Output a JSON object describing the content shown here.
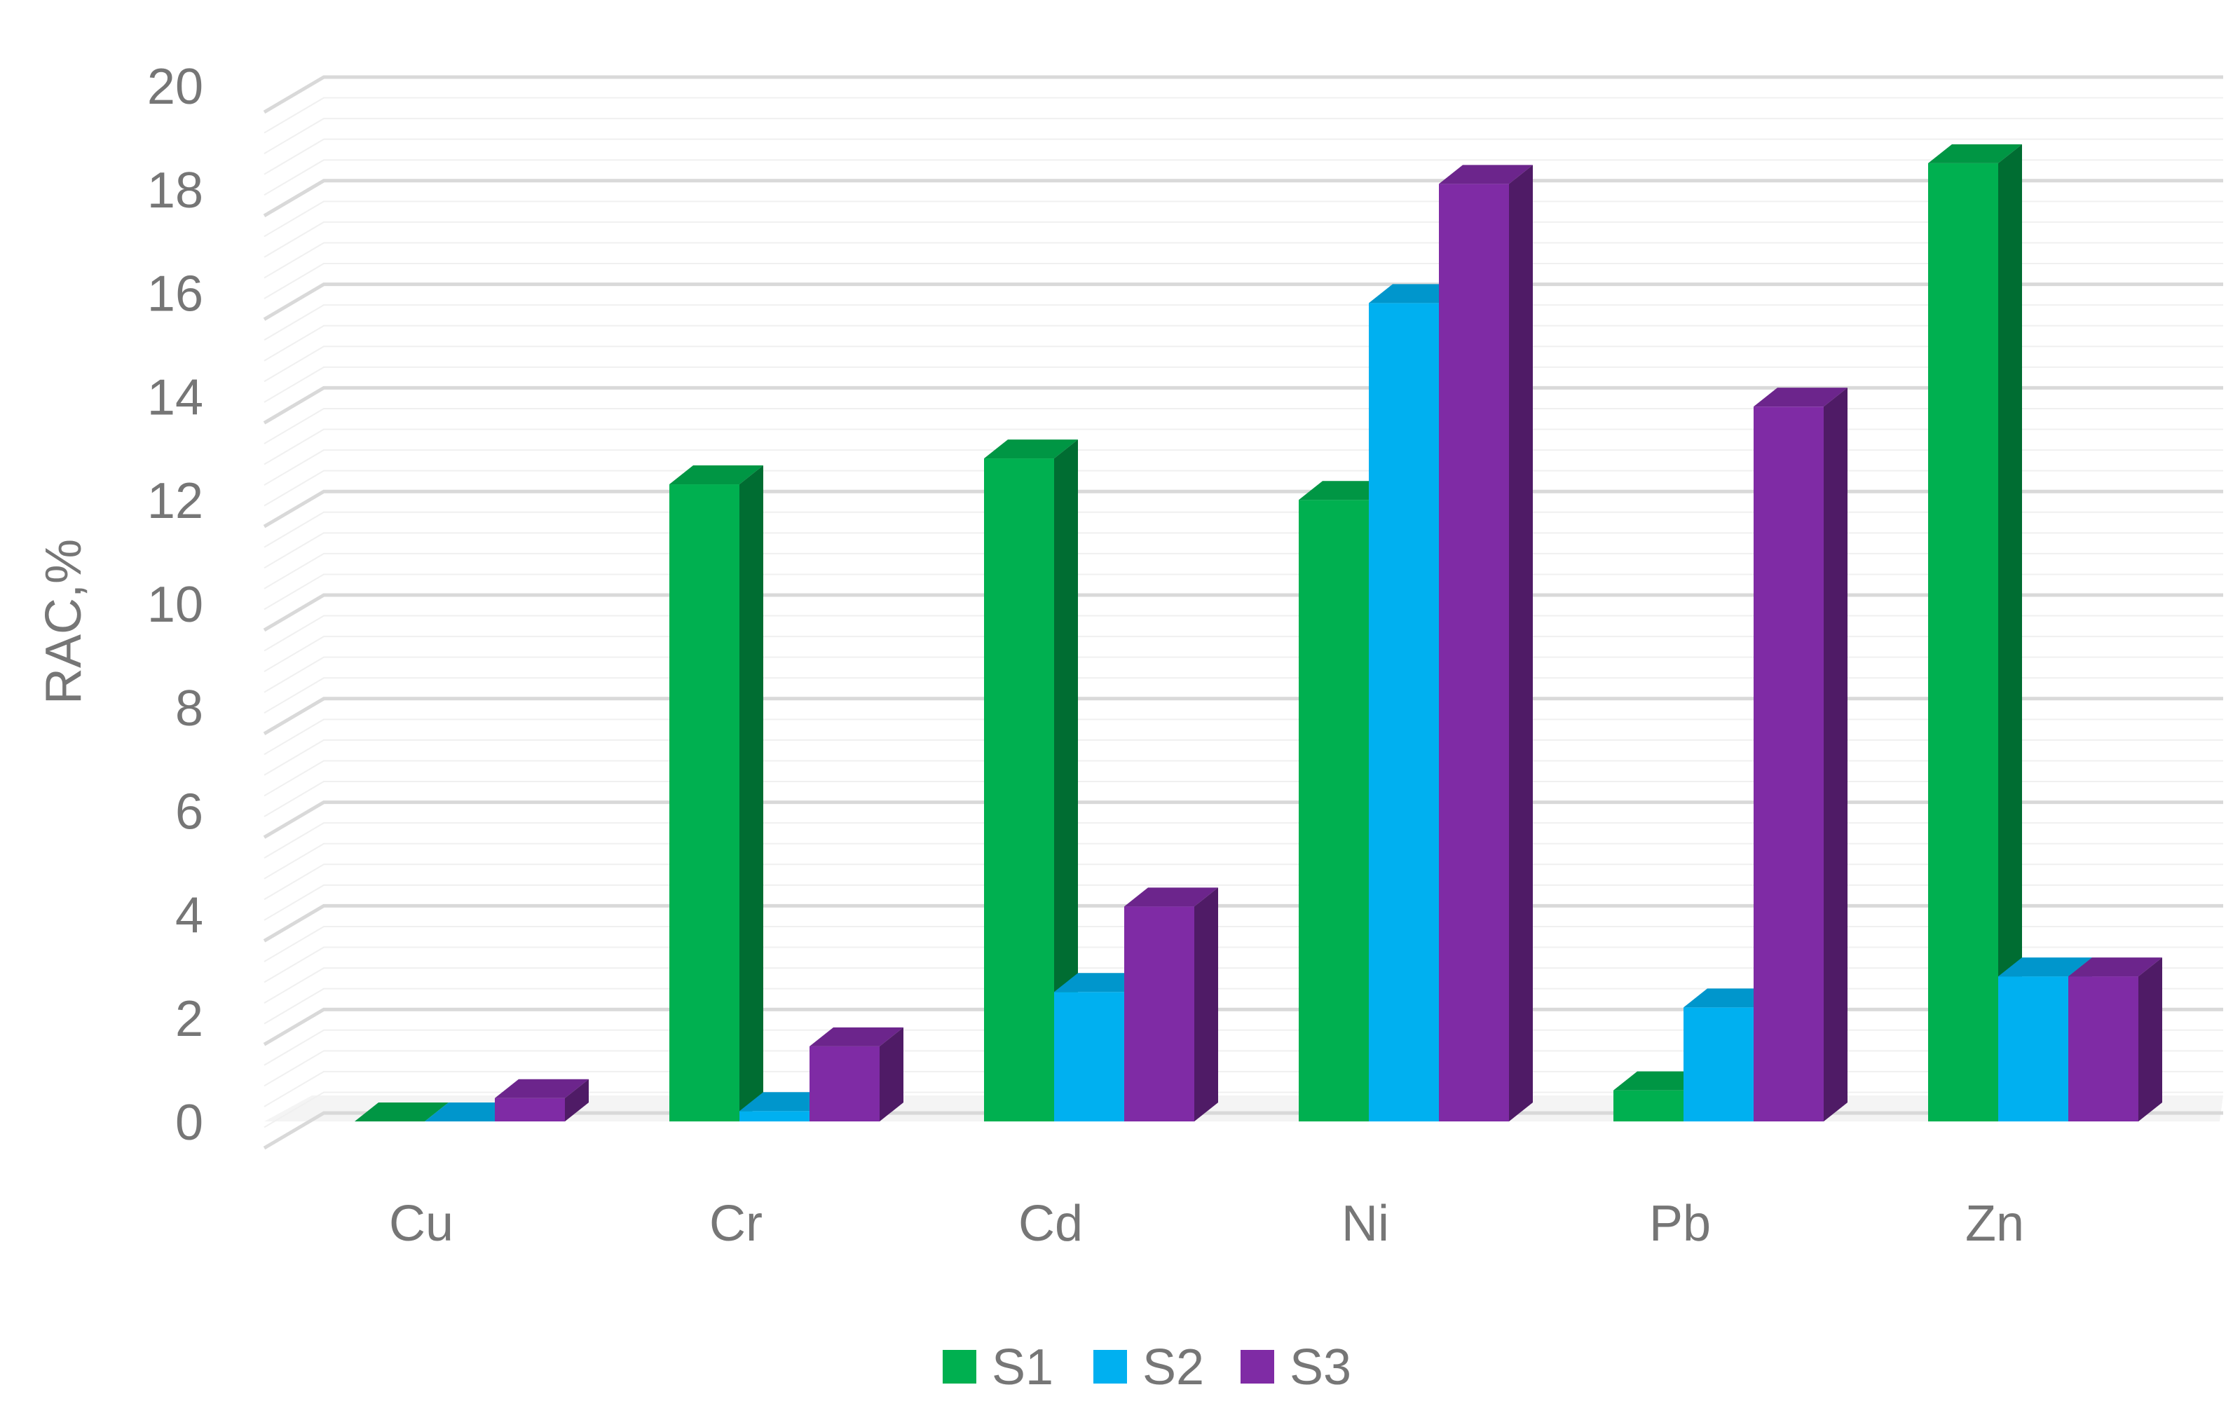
{
  "chart_data": {
    "type": "bar",
    "title": "",
    "xlabel": "",
    "ylabel": "RAC,%",
    "ylim": [
      0,
      20
    ],
    "yticks": [
      "0",
      "2",
      "4",
      "6",
      "8",
      "10",
      "12",
      "14",
      "16",
      "18",
      "20"
    ],
    "categories": [
      "Cu",
      "Cr",
      "Cd",
      "Ni",
      "Pb",
      "Zn"
    ],
    "series": [
      {
        "name": "S1",
        "color": "#00B050",
        "values": [
          0.0,
          12.3,
          12.8,
          12.0,
          0.6,
          18.5
        ]
      },
      {
        "name": "S2",
        "color": "#00B0F0",
        "values": [
          0.0,
          0.2,
          2.5,
          15.8,
          2.2,
          2.8
        ]
      },
      {
        "name": "S3",
        "color": "#7F2BA5",
        "values": [
          0.45,
          1.45,
          4.15,
          18.1,
          13.8,
          2.8
        ]
      }
    ],
    "grid": true,
    "style": "3d-clustered-column",
    "legend": {
      "position": "bottom",
      "entries": [
        "S1",
        "S2",
        "S3"
      ]
    }
  }
}
